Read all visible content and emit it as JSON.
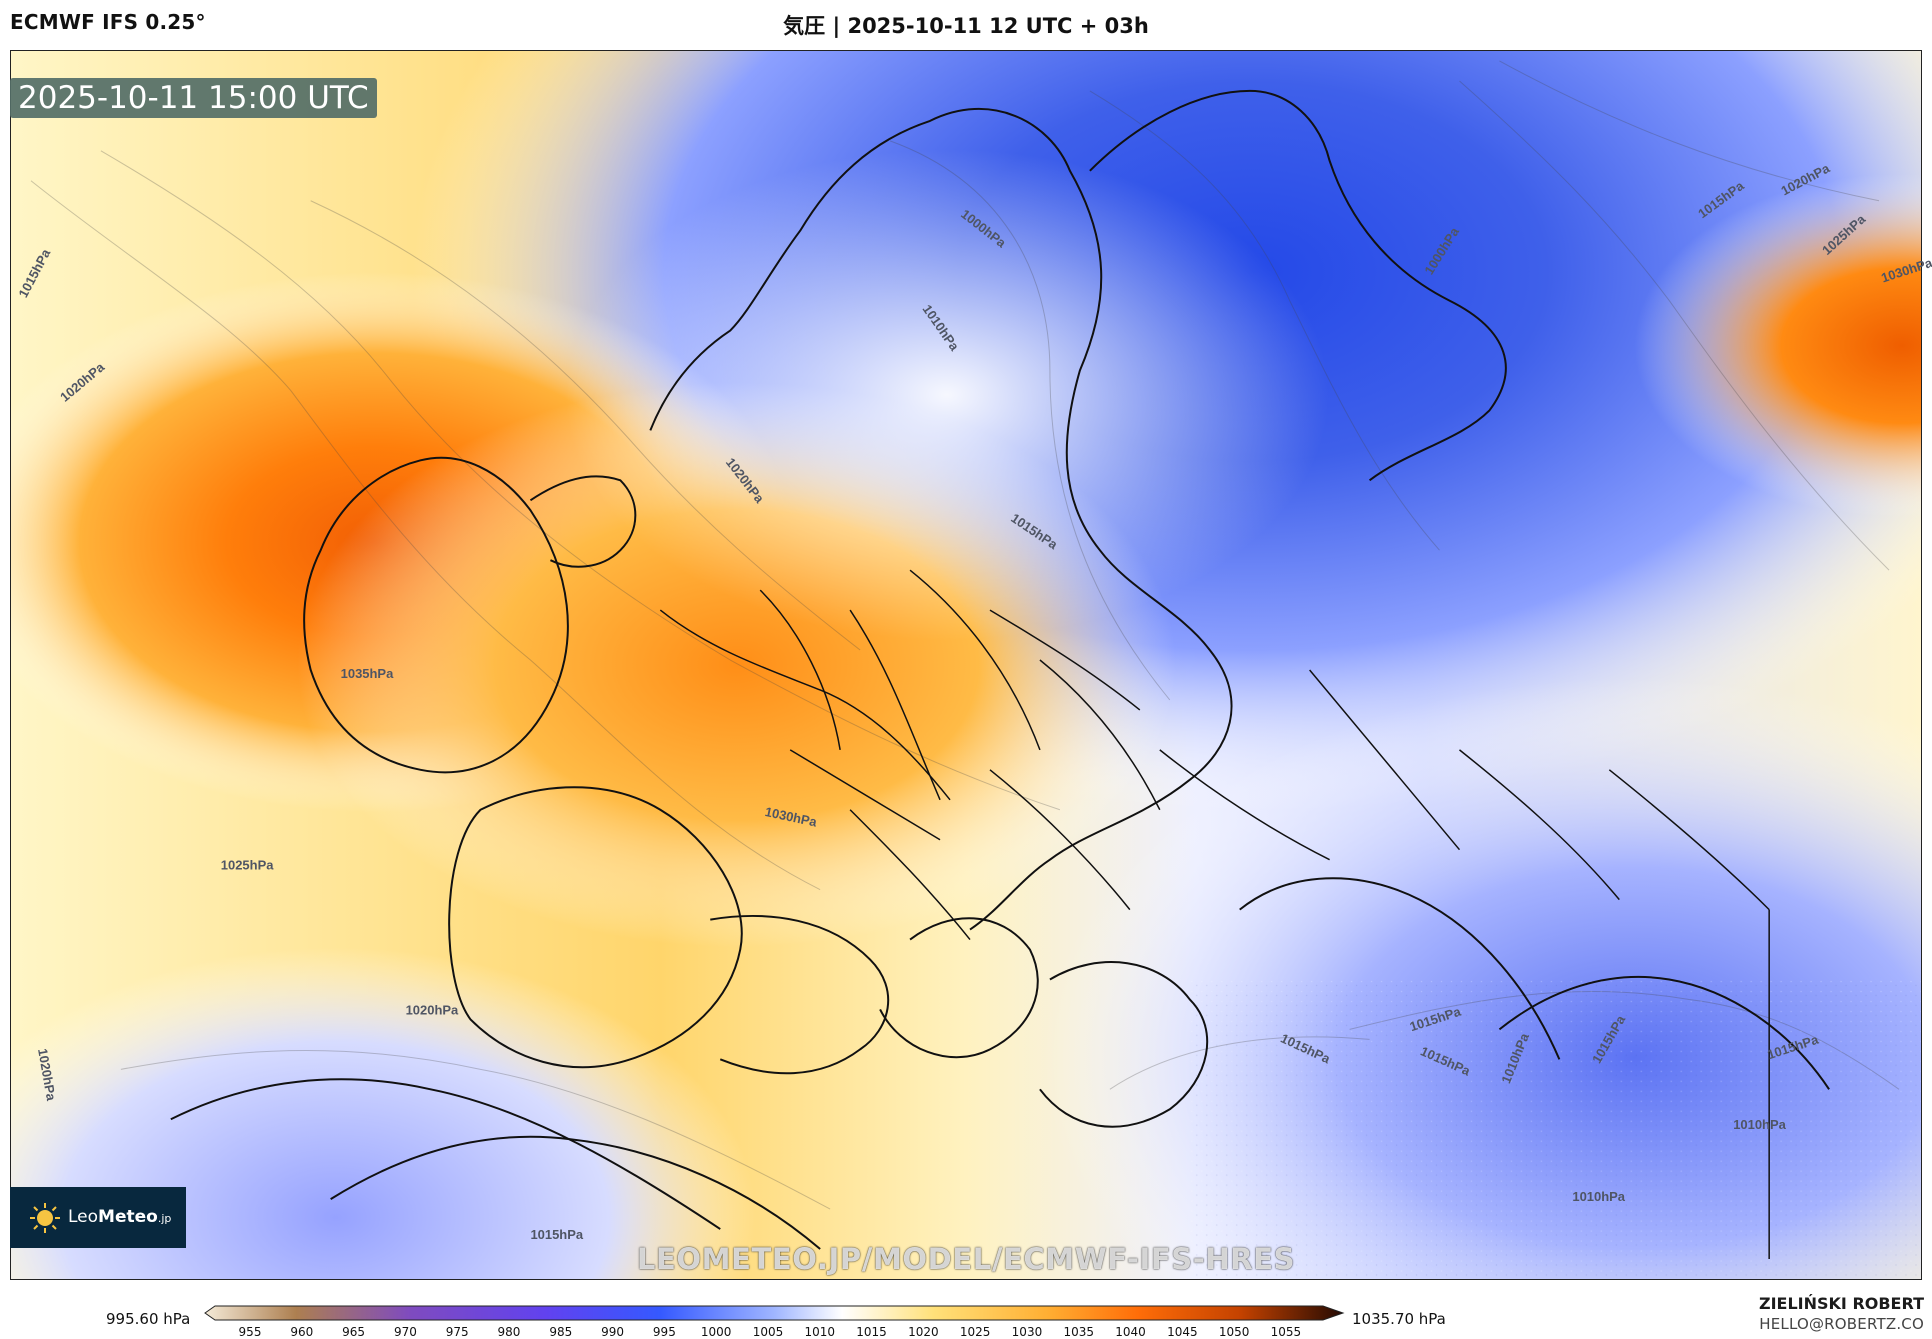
{
  "header": {
    "model": "ECMWF IFS 0.25°",
    "title": "気圧 | 2025-10-11 12 UTC + 03h"
  },
  "map": {
    "timestamp": "2025-10-11 15:00 UTC",
    "watermark": "LEOMETEO.JP/MODEL/ECMWF-IFS-HRES",
    "contour_labels": [
      "1015hPa",
      "1020hPa",
      "1000hPa",
      "1010hPa",
      "1000hPa",
      "1015hPa",
      "1020hPa",
      "1025hPa",
      "1030hPa",
      "1020hPa",
      "1015hPa",
      "1035hPa",
      "1030hPa",
      "1025hPa",
      "1020hPa",
      "1020hPa",
      "1015hPa",
      "1015hPa",
      "1015hPa",
      "1015hPa",
      "1010hPa",
      "1015hPa",
      "1015hPa",
      "1010hPa",
      "1010hPa"
    ]
  },
  "logo": {
    "prefix": "Leo",
    "brand": "Meteo",
    "suffix": ".jp"
  },
  "scale": {
    "min_label": "995.60 hPa",
    "max_label": "1035.70 hPa",
    "ticks": [
      "955",
      "960",
      "965",
      "970",
      "975",
      "980",
      "985",
      "990",
      "995",
      "1000",
      "1005",
      "1010",
      "1015",
      "1020",
      "1025",
      "1030",
      "1035",
      "1040",
      "1045",
      "1050",
      "1055"
    ]
  },
  "credit": {
    "name": "ZIELIŃSKI ROBERT",
    "email": "HELLO@ROBERTZ.CO"
  },
  "colors": {
    "low_pressure": "#2d4be0",
    "mid_pressure": "#ffffff",
    "high_pressure": "#ff7b00",
    "very_high_pressure": "#d94a00",
    "timestamp_box": "#546e67",
    "logo_background": "#08283e"
  }
}
